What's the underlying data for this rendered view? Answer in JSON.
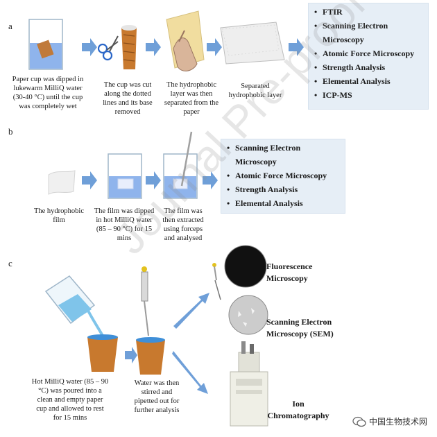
{
  "panels": {
    "a": {
      "label": "a",
      "captions": [
        [
          "Paper cup was dipped in",
          "lukewarm MilliQ water",
          "(30-40 °C) until the cup",
          "was completely wet"
        ],
        [
          "The cup was cut",
          "along the dotted",
          "lines and its base",
          "removed"
        ],
        [
          "The hydrophobic",
          "layer was then",
          "separated from the",
          "paper"
        ],
        [
          "Separated",
          "hydrophobic layer"
        ]
      ],
      "analyses": [
        "FTIR",
        [
          "Scanning Electron",
          "Microscopy"
        ],
        "Atomic Force Microscopy",
        "Strength Analysis",
        "Elemental Analysis",
        "ICP-MS"
      ]
    },
    "b": {
      "label": "b",
      "captions": [
        [
          "The hydrophobic",
          "film"
        ],
        [
          "The film was dipped",
          "in hot MilliQ water",
          "(85 – 90 °C) for 15",
          "mins"
        ],
        [
          "The film was",
          "then extracted",
          "using forceps",
          "and analysed"
        ]
      ],
      "analyses": [
        [
          "Scanning Electron",
          "Microscopy"
        ],
        "Atomic Force Microscopy",
        "Strength Analysis",
        "Elemental Analysis"
      ]
    },
    "c": {
      "label": "c",
      "captions": [
        [
          "Hot MilliQ water (85 – 90",
          "°C) was poured into a",
          "clean and empty paper",
          "cup and  allowed to rest",
          "for 15 mins"
        ],
        [
          "Water was then",
          "stirred and",
          "pipetted out for",
          "further analysis"
        ]
      ],
      "methods": [
        [
          "Fluorescence",
          "Microscopy"
        ],
        [
          "Scanning Electron",
          "Microscopy (SEM)"
        ],
        [
          "Ion",
          "Chromatography"
        ]
      ]
    }
  },
  "watermark": "Journal Pre-proof",
  "badge": "中国生物技术网",
  "colors": {
    "arrow": "#6f9fd8",
    "box_bg": "#e6eef6",
    "water": "#5d8fe0",
    "cup": "#c8792e",
    "sem_disc": "#c9c9c9",
    "fluor_disc": "#111111"
  }
}
